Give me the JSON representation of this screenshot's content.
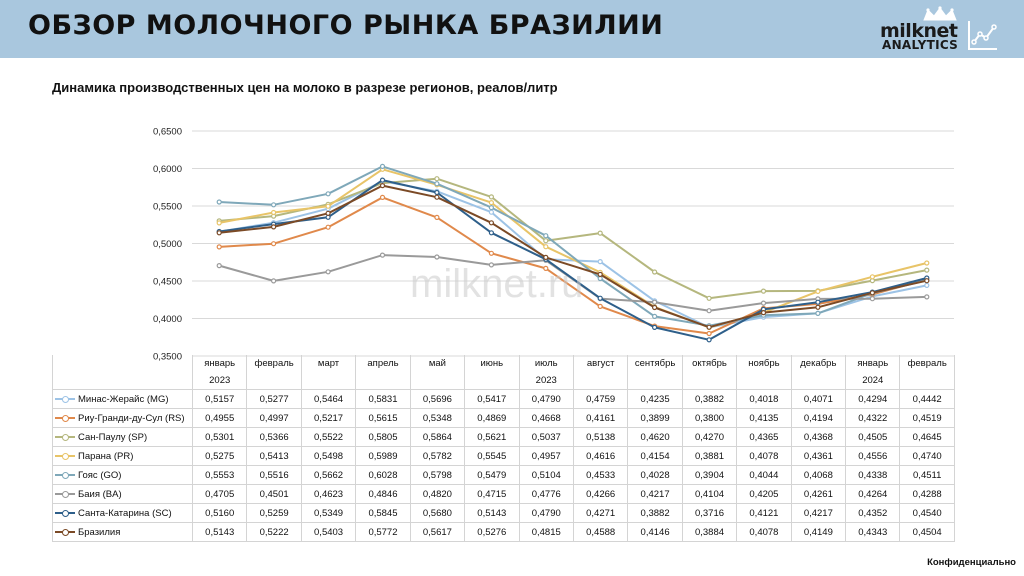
{
  "header": {
    "title": "ОБЗОР МОЛОЧНОГО РЫНКА БРАЗИЛИИ"
  },
  "logo": {
    "name": "milknet",
    "sub": "ANALYTICS"
  },
  "subtitle": "Динамика производственных цен на молоко в разрезе регионов, реалов/литр",
  "watermark": "milknet.ru",
  "footer": "Конфиденциально",
  "chart_data": {
    "type": "line",
    "categories": [
      "январь",
      "февраль",
      "март",
      "апрель",
      "май",
      "июнь",
      "июль",
      "август",
      "сентябрь",
      "октябрь",
      "ноябрь",
      "декабрь",
      "январь",
      "февраль"
    ],
    "year_groups": [
      {
        "label": "2023",
        "column": 0
      },
      {
        "label": "2023",
        "column": 6
      },
      {
        "label": "2024",
        "column": 12
      }
    ],
    "ylim": [
      0.35,
      0.65
    ],
    "yticks": [
      "0,3500",
      "0,4000",
      "0,4500",
      "0,5000",
      "0,5500",
      "0,6000",
      "0,6500"
    ],
    "grid": true,
    "legend": "table-below",
    "series": [
      {
        "name": "Минас-Жерайс (MG)",
        "color": "#9dc3e6",
        "labels": [
          "0,5157",
          "0,5277",
          "0,5464",
          "0,5831",
          "0,5696",
          "0,5417",
          "0,4790",
          "0,4759",
          "0,4235",
          "0,3882",
          "0,4018",
          "0,4071",
          "0,4294",
          "0,4442"
        ],
        "values": [
          0.5157,
          0.5277,
          0.5464,
          0.5831,
          0.5696,
          0.5417,
          0.479,
          0.4759,
          0.4235,
          0.3882,
          0.4018,
          0.4071,
          0.4294,
          0.4442
        ]
      },
      {
        "name": "Риу-Гранди-ду-Сул (RS)",
        "color": "#e0894b",
        "labels": [
          "0,4955",
          "0,4997",
          "0,5217",
          "0,5615",
          "0,5348",
          "0,4869",
          "0,4668",
          "0,4161",
          "0,3899",
          "0,3800",
          "0,4135",
          "0,4194",
          "0,4322",
          "0,4519"
        ],
        "values": [
          0.4955,
          0.4997,
          0.5217,
          0.5615,
          0.5348,
          0.4869,
          0.4668,
          0.4161,
          0.3899,
          0.38,
          0.4135,
          0.4194,
          0.4322,
          0.4519
        ]
      },
      {
        "name": "Сан-Паулу (SP)",
        "color": "#b5b77e",
        "labels": [
          "0,5301",
          "0,5366",
          "0,5522",
          "0,5805",
          "0,5864",
          "0,5621",
          "0,5037",
          "0,5138",
          "0,4620",
          "0,4270",
          "0,4365",
          "0,4368",
          "0,4505",
          "0,4645"
        ],
        "values": [
          0.5301,
          0.5366,
          0.5522,
          0.5805,
          0.5864,
          0.5621,
          0.5037,
          0.5138,
          0.462,
          0.427,
          0.4365,
          0.4368,
          0.4505,
          0.4645
        ]
      },
      {
        "name": "Парана (PR)",
        "color": "#e8c468",
        "labels": [
          "0,5275",
          "0,5413",
          "0,5498",
          "0,5989",
          "0,5782",
          "0,5545",
          "0,4957",
          "0,4616",
          "0,4154",
          "0,3881",
          "0,4078",
          "0,4361",
          "0,4556",
          "0,4740"
        ],
        "values": [
          0.5275,
          0.5413,
          0.5498,
          0.5989,
          0.5782,
          0.5545,
          0.4957,
          0.4616,
          0.4154,
          0.3881,
          0.4078,
          0.4361,
          0.4556,
          0.474
        ]
      },
      {
        "name": "Гояс (GO)",
        "color": "#7fa8b9",
        "labels": [
          "0,5553",
          "0,5516",
          "0,5662",
          "0,6028",
          "0,5798",
          "0,5479",
          "0,5104",
          "0,4533",
          "0,4028",
          "0,3904",
          "0,4044",
          "0,4068",
          "0,4338",
          "0,4511"
        ],
        "values": [
          0.5553,
          0.5516,
          0.5662,
          0.6028,
          0.5798,
          0.5479,
          0.5104,
          0.4533,
          0.4028,
          0.3904,
          0.4044,
          0.4068,
          0.4338,
          0.4511
        ]
      },
      {
        "name": "Баия (BA)",
        "color": "#9a9a9a",
        "labels": [
          "0,4705",
          "0,4501",
          "0,4623",
          "0,4846",
          "0,4820",
          "0,4715",
          "0,4776",
          "0,4266",
          "0,4217",
          "0,4104",
          "0,4205",
          "0,4261",
          "0,4264",
          "0,4288"
        ],
        "values": [
          0.4705,
          0.4501,
          0.4623,
          0.4846,
          0.482,
          0.4715,
          0.4776,
          0.4266,
          0.4217,
          0.4104,
          0.4205,
          0.4261,
          0.4264,
          0.4288
        ]
      },
      {
        "name": "Санта-Катарина (SC)",
        "color": "#2e5f8a",
        "labels": [
          "0,5160",
          "0,5259",
          "0,5349",
          "0,5845",
          "0,5680",
          "0,5143",
          "0,4790",
          "0,4271",
          "0,3882",
          "0,3716",
          "0,4121",
          "0,4217",
          "0,4352",
          "0,4540"
        ],
        "values": [
          0.516,
          0.5259,
          0.5349,
          0.5845,
          0.568,
          0.5143,
          0.479,
          0.4271,
          0.3882,
          0.3716,
          0.4121,
          0.4217,
          0.4352,
          0.454
        ]
      },
      {
        "name": "Бразилия",
        "color": "#7b4a26",
        "labels": [
          "0,5143",
          "0,5222",
          "0,5403",
          "0,5772",
          "0,5617",
          "0,5276",
          "0,4815",
          "0,4588",
          "0,4146",
          "0,3884",
          "0,4078",
          "0,4149",
          "0,4343",
          "0,4504"
        ],
        "values": [
          0.5143,
          0.5222,
          0.5403,
          0.5772,
          0.5617,
          0.5276,
          0.4815,
          0.4588,
          0.4146,
          0.3884,
          0.4078,
          0.4149,
          0.4343,
          0.4504
        ]
      }
    ]
  }
}
